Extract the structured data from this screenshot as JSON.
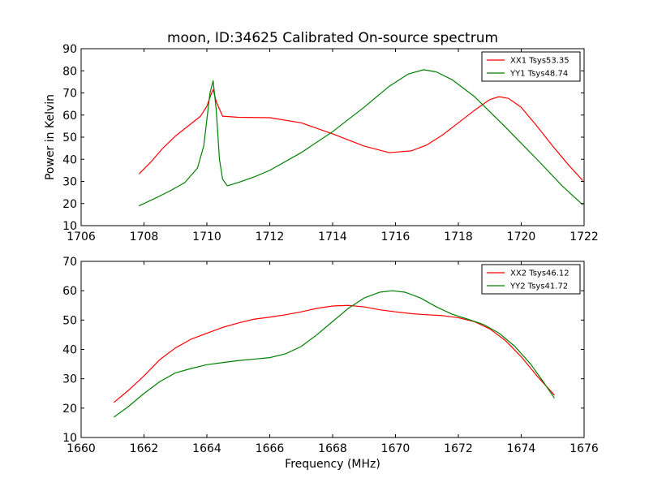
{
  "chart_data": [
    {
      "type": "line",
      "title": "moon, ID:34625 Calibrated On-source spectrum",
      "xlabel": "",
      "ylabel": "Power in Kelvin",
      "xlim": [
        1706,
        1722
      ],
      "ylim": [
        10,
        90
      ],
      "xticks": [
        1706,
        1708,
        1710,
        1712,
        1714,
        1716,
        1718,
        1720,
        1722
      ],
      "yticks": [
        10,
        20,
        30,
        40,
        50,
        60,
        70,
        80,
        90
      ],
      "legend_position": "top-right",
      "series": [
        {
          "name": "XX1 Tsys53.35",
          "color": "#ff0000",
          "x": [
            1707.85,
            1708.2,
            1708.6,
            1709.0,
            1709.4,
            1709.8,
            1710.0,
            1710.15,
            1710.2,
            1710.3,
            1710.5,
            1711.0,
            1712.0,
            1713.0,
            1714.0,
            1715.0,
            1715.8,
            1716.5,
            1717.0,
            1717.5,
            1718.0,
            1718.5,
            1719.0,
            1719.3,
            1719.6,
            1720.0,
            1720.5,
            1721.0,
            1721.5,
            1721.95
          ],
          "y": [
            33.5,
            38.5,
            45.0,
            50.5,
            55.0,
            59.5,
            64.0,
            70.0,
            71.5,
            66.0,
            59.5,
            59.0,
            58.8,
            56.5,
            51.5,
            46.0,
            43.0,
            43.8,
            46.5,
            51.0,
            56.5,
            62.0,
            67.0,
            68.3,
            67.5,
            63.5,
            55.0,
            46.0,
            37.5,
            30.5
          ]
        },
        {
          "name": "YY1 Tsys48.74",
          "color": "#008000",
          "x": [
            1707.85,
            1708.3,
            1708.8,
            1709.3,
            1709.7,
            1709.9,
            1710.0,
            1710.1,
            1710.2,
            1710.3,
            1710.4,
            1710.5,
            1710.65,
            1711.0,
            1711.5,
            1712.0,
            1713.0,
            1714.0,
            1715.0,
            1715.8,
            1716.4,
            1716.9,
            1717.3,
            1717.8,
            1718.5,
            1719.5,
            1720.5,
            1721.3,
            1721.95
          ],
          "y": [
            19.0,
            22.0,
            25.5,
            29.5,
            36.0,
            46.0,
            58.0,
            70.0,
            75.5,
            62.0,
            40.0,
            31.0,
            28.0,
            29.5,
            32.0,
            35.0,
            43.0,
            52.5,
            63.5,
            73.0,
            78.5,
            80.5,
            79.5,
            76.0,
            68.5,
            54.5,
            40.0,
            28.0,
            19.5
          ]
        }
      ]
    },
    {
      "type": "line",
      "title": "",
      "xlabel": "Frequency (MHz)",
      "ylabel": "",
      "xlim": [
        1660,
        1676
      ],
      "ylim": [
        10,
        70
      ],
      "xticks": [
        1660,
        1662,
        1664,
        1666,
        1668,
        1670,
        1672,
        1674,
        1676
      ],
      "yticks": [
        10,
        20,
        30,
        40,
        50,
        60,
        70
      ],
      "legend_position": "top-right",
      "series": [
        {
          "name": "XX2 Tsys46.12",
          "color": "#ff0000",
          "x": [
            1661.05,
            1661.5,
            1662.0,
            1662.5,
            1663.0,
            1663.5,
            1664.0,
            1664.5,
            1665.0,
            1665.5,
            1666.0,
            1666.5,
            1667.0,
            1667.5,
            1668.0,
            1668.5,
            1669.0,
            1669.5,
            1670.0,
            1670.5,
            1671.0,
            1671.5,
            1672.0,
            1672.5,
            1673.0,
            1673.5,
            1674.0,
            1674.5,
            1675.05
          ],
          "y": [
            22.0,
            26.0,
            31.0,
            36.5,
            40.5,
            43.5,
            45.5,
            47.5,
            49.0,
            50.3,
            51.0,
            51.8,
            52.8,
            54.0,
            54.8,
            55.0,
            54.5,
            53.5,
            52.8,
            52.2,
            51.8,
            51.5,
            50.8,
            49.5,
            47.0,
            43.0,
            37.5,
            31.0,
            24.5
          ]
        },
        {
          "name": "YY2 Tsys41.72",
          "color": "#008000",
          "x": [
            1661.05,
            1661.5,
            1662.0,
            1662.5,
            1663.0,
            1663.5,
            1664.0,
            1664.5,
            1665.0,
            1665.5,
            1666.0,
            1666.5,
            1667.0,
            1667.5,
            1668.0,
            1668.5,
            1669.0,
            1669.5,
            1669.9,
            1670.3,
            1670.8,
            1671.3,
            1671.8,
            1672.3,
            1672.8,
            1673.3,
            1673.8,
            1674.3,
            1674.7,
            1675.05
          ],
          "y": [
            17.0,
            20.5,
            25.0,
            29.0,
            32.0,
            33.5,
            34.8,
            35.5,
            36.2,
            36.7,
            37.2,
            38.5,
            41.0,
            45.0,
            49.5,
            54.0,
            57.5,
            59.5,
            60.0,
            59.5,
            57.5,
            54.5,
            52.0,
            50.3,
            48.5,
            45.5,
            41.0,
            35.0,
            29.0,
            23.5
          ]
        }
      ]
    }
  ]
}
